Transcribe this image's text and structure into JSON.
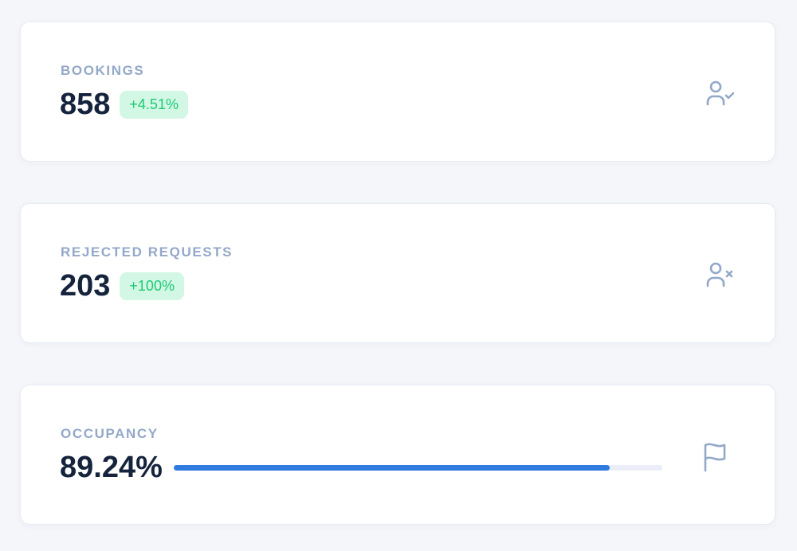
{
  "cards": [
    {
      "label": "BOOKINGS",
      "value": "858",
      "badge": "+4.51%",
      "icon": "user-check-icon"
    },
    {
      "label": "REJECTED REQUESTS",
      "value": "203",
      "badge": "+100%",
      "icon": "user-x-icon"
    },
    {
      "label": "OCCUPANCY",
      "value": "89.24%",
      "progress_percent": 89.24,
      "icon": "flag-icon"
    }
  ],
  "colors": {
    "accent": "#2f7be0",
    "badge_bg": "#d2f7e5",
    "badge_text": "#1fcb74",
    "label": "#93a8c8"
  }
}
